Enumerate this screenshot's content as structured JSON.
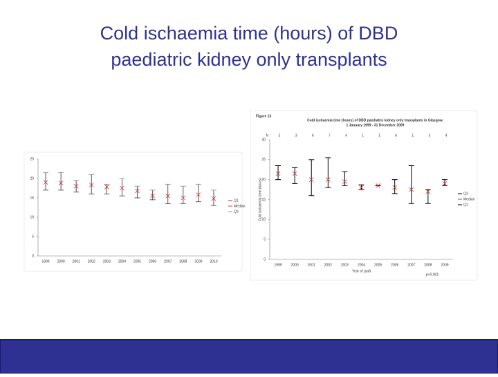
{
  "slide_title": [
    "Cold ischaemia time (hours) of DBD",
    "paediatric kidney only transplants"
  ],
  "chart_data": [
    {
      "type": "box",
      "categories": [
        "1999",
        "2000",
        "2001",
        "2002",
        "2003",
        "2004",
        "2005",
        "2006",
        "2007",
        "2008",
        "2009",
        "2010"
      ],
      "series": [
        {
          "name": "Q1",
          "color": "#555555",
          "values": [
            17,
            17,
            16.5,
            16,
            16,
            15.5,
            15,
            14.5,
            13.5,
            13.5,
            14,
            13
          ]
        },
        {
          "name": "Median",
          "color": "#e03030",
          "values": [
            19,
            18.8,
            18,
            18.3,
            17.8,
            17.5,
            16.8,
            15.5,
            15.5,
            15,
            15.8,
            14.8
          ]
        },
        {
          "name": "Q3",
          "color": "#999999",
          "values": [
            21.5,
            21.5,
            19.5,
            21,
            18.5,
            20,
            18,
            17,
            18.5,
            18,
            18.5,
            17
          ]
        }
      ],
      "ylim": [
        0,
        25
      ],
      "yticks": [
        0,
        5,
        10,
        15,
        20,
        25
      ]
    },
    {
      "type": "box",
      "figure_label": "Figure 13",
      "title": "Cold ischaemia time (hours) of DBD paediatric kidney only transplants in Glasgow,",
      "subtitle": "1 January 1999 - 31 December 2009",
      "xlabel": "Year of graft",
      "ylabel": "Cold ischaemia time (hours)",
      "annotation": "p<0.001",
      "n_label": "N",
      "counts": [
        2,
        3,
        6,
        7,
        4,
        1,
        1,
        6,
        1,
        3,
        4
      ],
      "categories": [
        "1999",
        "2000",
        "2001",
        "2002",
        "2003",
        "2004",
        "2005",
        "2006",
        "2007",
        "2008",
        "2009"
      ],
      "series": [
        {
          "name": "Q3",
          "color": "#000000",
          "values": [
            23.5,
            23,
            25,
            25.5,
            22,
            18.7,
            18.5,
            20,
            23.5,
            17.5,
            20
          ]
        },
        {
          "name": "Median",
          "color": "#e03030",
          "values": [
            21.5,
            21.5,
            20,
            20,
            19.5,
            18,
            18.5,
            18,
            17.5,
            17,
            19
          ]
        },
        {
          "name": "Q1",
          "color": "#000000",
          "values": [
            20,
            19,
            16,
            18,
            18.5,
            17.5,
            18.5,
            16.5,
            14,
            14,
            18.5
          ]
        }
      ],
      "ylim": [
        0,
        30
      ],
      "yticks": [
        0,
        5,
        10,
        15,
        20,
        25,
        30
      ]
    }
  ]
}
